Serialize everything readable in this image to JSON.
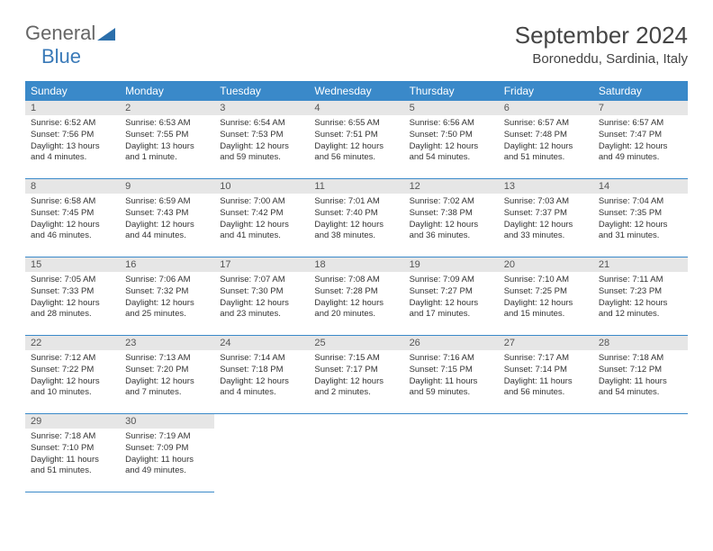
{
  "logo": {
    "text1": "General",
    "text2": "Blue"
  },
  "title": "September 2024",
  "location": "Boroneddu, Sardinia, Italy",
  "colors": {
    "header_bg": "#3a89c9",
    "header_text": "#ffffff",
    "daynum_bg": "#e6e6e6",
    "border": "#3a89c9",
    "logo_blue": "#3a7ab8"
  },
  "weekdays": [
    "Sunday",
    "Monday",
    "Tuesday",
    "Wednesday",
    "Thursday",
    "Friday",
    "Saturday"
  ],
  "weeks": [
    [
      {
        "n": "1",
        "sr": "6:52 AM",
        "ss": "7:56 PM",
        "dl": "13 hours and 4 minutes."
      },
      {
        "n": "2",
        "sr": "6:53 AM",
        "ss": "7:55 PM",
        "dl": "13 hours and 1 minute."
      },
      {
        "n": "3",
        "sr": "6:54 AM",
        "ss": "7:53 PM",
        "dl": "12 hours and 59 minutes."
      },
      {
        "n": "4",
        "sr": "6:55 AM",
        "ss": "7:51 PM",
        "dl": "12 hours and 56 minutes."
      },
      {
        "n": "5",
        "sr": "6:56 AM",
        "ss": "7:50 PM",
        "dl": "12 hours and 54 minutes."
      },
      {
        "n": "6",
        "sr": "6:57 AM",
        "ss": "7:48 PM",
        "dl": "12 hours and 51 minutes."
      },
      {
        "n": "7",
        "sr": "6:57 AM",
        "ss": "7:47 PM",
        "dl": "12 hours and 49 minutes."
      }
    ],
    [
      {
        "n": "8",
        "sr": "6:58 AM",
        "ss": "7:45 PM",
        "dl": "12 hours and 46 minutes."
      },
      {
        "n": "9",
        "sr": "6:59 AM",
        "ss": "7:43 PM",
        "dl": "12 hours and 44 minutes."
      },
      {
        "n": "10",
        "sr": "7:00 AM",
        "ss": "7:42 PM",
        "dl": "12 hours and 41 minutes."
      },
      {
        "n": "11",
        "sr": "7:01 AM",
        "ss": "7:40 PM",
        "dl": "12 hours and 38 minutes."
      },
      {
        "n": "12",
        "sr": "7:02 AM",
        "ss": "7:38 PM",
        "dl": "12 hours and 36 minutes."
      },
      {
        "n": "13",
        "sr": "7:03 AM",
        "ss": "7:37 PM",
        "dl": "12 hours and 33 minutes."
      },
      {
        "n": "14",
        "sr": "7:04 AM",
        "ss": "7:35 PM",
        "dl": "12 hours and 31 minutes."
      }
    ],
    [
      {
        "n": "15",
        "sr": "7:05 AM",
        "ss": "7:33 PM",
        "dl": "12 hours and 28 minutes."
      },
      {
        "n": "16",
        "sr": "7:06 AM",
        "ss": "7:32 PM",
        "dl": "12 hours and 25 minutes."
      },
      {
        "n": "17",
        "sr": "7:07 AM",
        "ss": "7:30 PM",
        "dl": "12 hours and 23 minutes."
      },
      {
        "n": "18",
        "sr": "7:08 AM",
        "ss": "7:28 PM",
        "dl": "12 hours and 20 minutes."
      },
      {
        "n": "19",
        "sr": "7:09 AM",
        "ss": "7:27 PM",
        "dl": "12 hours and 17 minutes."
      },
      {
        "n": "20",
        "sr": "7:10 AM",
        "ss": "7:25 PM",
        "dl": "12 hours and 15 minutes."
      },
      {
        "n": "21",
        "sr": "7:11 AM",
        "ss": "7:23 PM",
        "dl": "12 hours and 12 minutes."
      }
    ],
    [
      {
        "n": "22",
        "sr": "7:12 AM",
        "ss": "7:22 PM",
        "dl": "12 hours and 10 minutes."
      },
      {
        "n": "23",
        "sr": "7:13 AM",
        "ss": "7:20 PM",
        "dl": "12 hours and 7 minutes."
      },
      {
        "n": "24",
        "sr": "7:14 AM",
        "ss": "7:18 PM",
        "dl": "12 hours and 4 minutes."
      },
      {
        "n": "25",
        "sr": "7:15 AM",
        "ss": "7:17 PM",
        "dl": "12 hours and 2 minutes."
      },
      {
        "n": "26",
        "sr": "7:16 AM",
        "ss": "7:15 PM",
        "dl": "11 hours and 59 minutes."
      },
      {
        "n": "27",
        "sr": "7:17 AM",
        "ss": "7:14 PM",
        "dl": "11 hours and 56 minutes."
      },
      {
        "n": "28",
        "sr": "7:18 AM",
        "ss": "7:12 PM",
        "dl": "11 hours and 54 minutes."
      }
    ],
    [
      {
        "n": "29",
        "sr": "7:18 AM",
        "ss": "7:10 PM",
        "dl": "11 hours and 51 minutes."
      },
      {
        "n": "30",
        "sr": "7:19 AM",
        "ss": "7:09 PM",
        "dl": "11 hours and 49 minutes."
      },
      null,
      null,
      null,
      null,
      null
    ]
  ],
  "labels": {
    "sunrise": "Sunrise: ",
    "sunset": "Sunset: ",
    "daylight": "Daylight: "
  }
}
